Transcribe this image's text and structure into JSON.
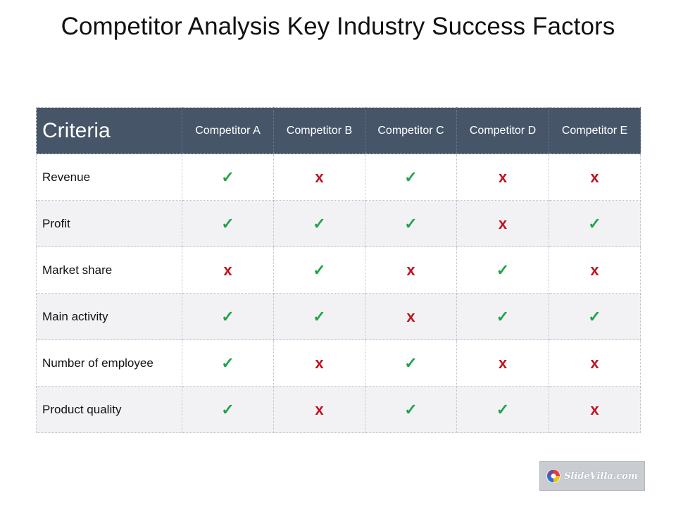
{
  "slide": {
    "title": "Competitor Analysis Key Industry Success Factors"
  },
  "table": {
    "header": {
      "criteria": "Criteria",
      "competitors": [
        "Competitor A",
        "Competitor B",
        "Competitor C",
        "Competitor D",
        "Competitor E"
      ]
    },
    "rows": [
      {
        "label": "Revenue",
        "marks": [
          "✓",
          "x",
          "✓",
          "x",
          "x"
        ]
      },
      {
        "label": "Profit",
        "marks": [
          "✓",
          "✓",
          "✓",
          "x",
          "✓"
        ]
      },
      {
        "label": "Market share",
        "marks": [
          "x",
          "✓",
          "x",
          "✓",
          "x"
        ]
      },
      {
        "label": "Main activity",
        "marks": [
          "✓",
          "✓",
          "x",
          "✓",
          "✓"
        ]
      },
      {
        "label": "Number of employee",
        "marks": [
          "✓",
          "x",
          "✓",
          "x",
          "x"
        ]
      },
      {
        "label": "Product quality",
        "marks": [
          "✓",
          "x",
          "✓",
          "✓",
          "x"
        ]
      }
    ]
  },
  "logo": {
    "text": "SlideVilla.com"
  },
  "colors": {
    "header_bg": "#475569",
    "check": "#1fa34a",
    "cross": "#c1121f",
    "alt_row": "#f2f2f4"
  }
}
